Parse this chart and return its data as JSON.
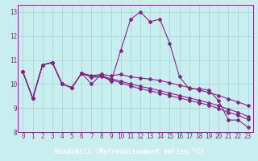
{
  "xlabel": "Windchill (Refroidissement éolien,°C)",
  "x_hours": [
    0,
    1,
    2,
    3,
    4,
    5,
    6,
    7,
    8,
    9,
    10,
    11,
    12,
    13,
    14,
    15,
    16,
    17,
    18,
    19,
    20,
    21,
    22,
    23
  ],
  "line1": [
    10.5,
    9.4,
    10.8,
    10.9,
    10.0,
    9.85,
    10.45,
    10.0,
    10.4,
    10.1,
    11.4,
    12.7,
    13.0,
    12.6,
    12.7,
    11.7,
    10.3,
    9.8,
    9.8,
    9.75,
    9.3,
    8.5,
    8.5,
    8.2
  ],
  "line2": [
    10.5,
    9.4,
    10.8,
    10.9,
    10.0,
    9.85,
    10.45,
    10.35,
    10.4,
    10.35,
    10.4,
    10.3,
    10.25,
    10.2,
    10.15,
    10.05,
    9.95,
    9.85,
    9.75,
    9.65,
    9.52,
    9.38,
    9.25,
    9.1
  ],
  "line3": [
    10.5,
    9.4,
    10.8,
    10.9,
    10.0,
    9.85,
    10.45,
    10.32,
    10.35,
    10.22,
    10.12,
    10.0,
    9.9,
    9.82,
    9.72,
    9.62,
    9.52,
    9.42,
    9.32,
    9.22,
    9.1,
    8.95,
    8.82,
    8.65
  ],
  "line4": [
    10.5,
    9.4,
    10.8,
    10.9,
    10.0,
    9.85,
    10.45,
    10.28,
    10.3,
    10.18,
    10.05,
    9.92,
    9.8,
    9.72,
    9.62,
    9.52,
    9.42,
    9.32,
    9.22,
    9.12,
    8.98,
    8.82,
    8.7,
    8.52
  ],
  "line_color": "#882288",
  "bg_color": "#c8eef0",
  "grid_color": "#a8d8da",
  "label_bg": "#550055",
  "label_fg": "#ffffff",
  "ylim_min": 8.0,
  "ylim_max": 13.3,
  "yticks": [
    8,
    9,
    10,
    11,
    12,
    13
  ],
  "xticks": [
    0,
    1,
    2,
    3,
    4,
    5,
    6,
    7,
    8,
    9,
    10,
    11,
    12,
    13,
    14,
    15,
    16,
    17,
    18,
    19,
    20,
    21,
    22,
    23
  ],
  "tick_fontsize": 5.5,
  "xlabel_fontsize": 6.0
}
